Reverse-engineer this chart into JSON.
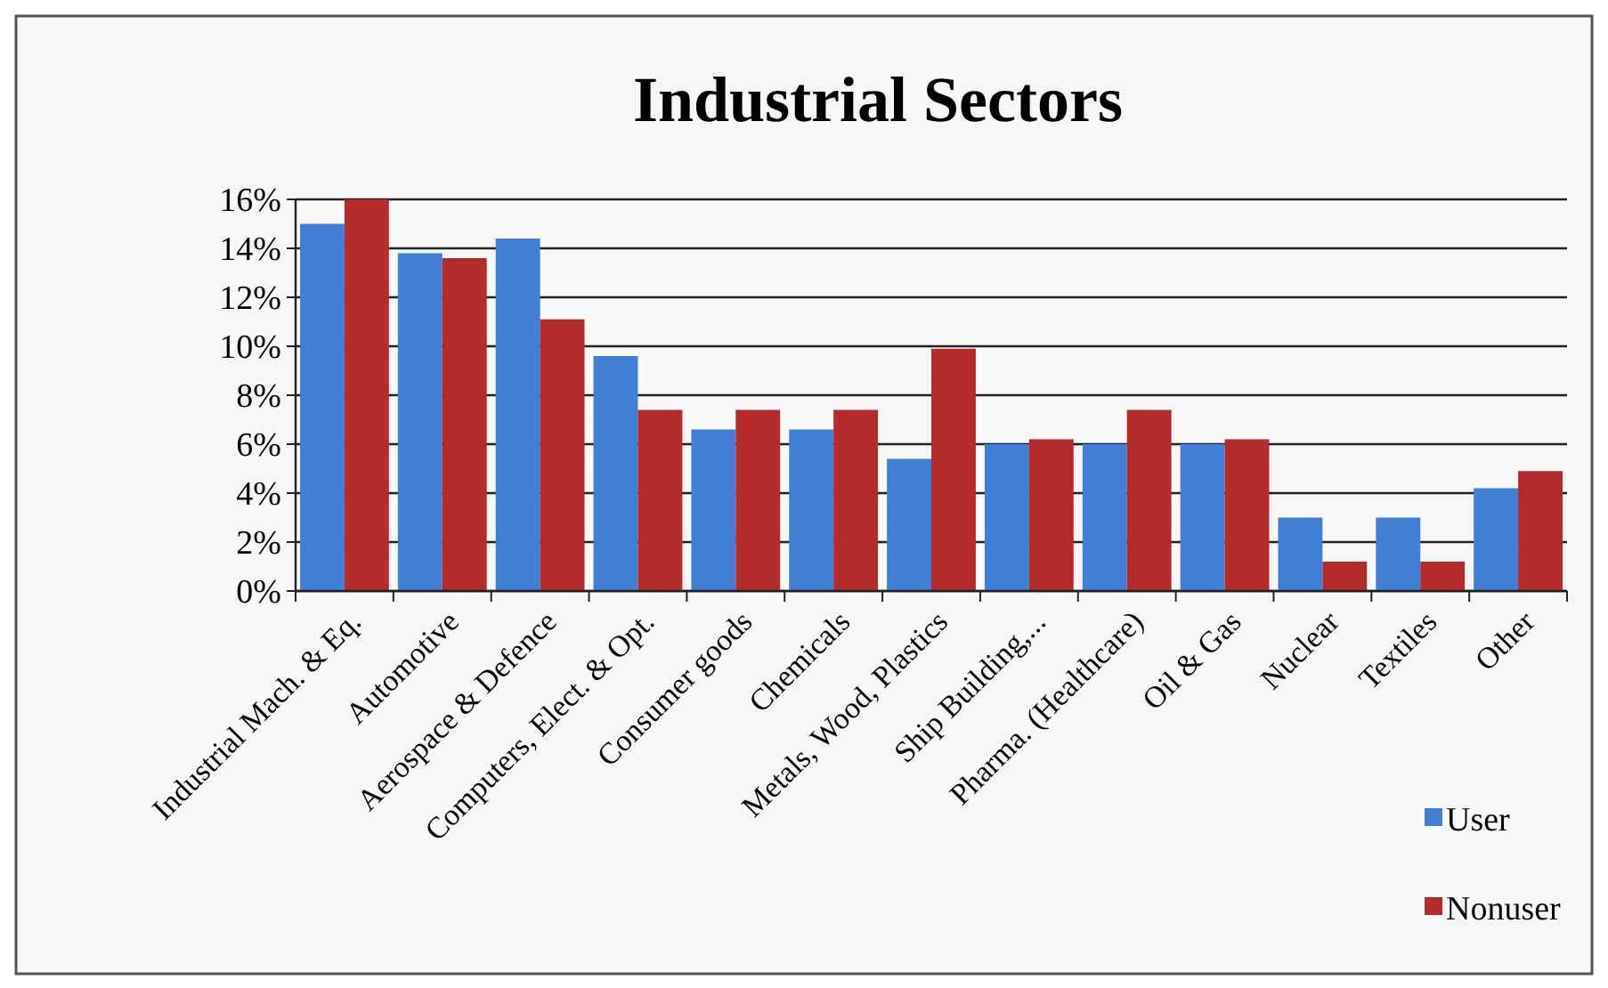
{
  "chart_data": {
    "type": "bar",
    "title": "Industrial Sectors",
    "categories": [
      "Industrial Mach. & Eq.",
      "Automotive",
      "Aerospace & Defence",
      "Computers, Elect. & Opt.",
      "Consumer goods",
      "Chemicals",
      "Metals, Wood, Plastics",
      "Ship Building,...",
      "Pharma. (Healthcare)",
      "Oil & Gas",
      "Nuclear",
      "Textiles",
      "Other"
    ],
    "series": [
      {
        "name": "User",
        "color": "#3f7fd6",
        "values": [
          15.0,
          13.8,
          14.4,
          9.6,
          6.6,
          6.6,
          5.4,
          6.0,
          6.0,
          6.0,
          3.0,
          3.0,
          4.2
        ]
      },
      {
        "name": "Nonuser",
        "color": "#b52a2a",
        "values": [
          16.0,
          13.6,
          11.1,
          7.4,
          7.4,
          7.4,
          9.9,
          6.2,
          7.4,
          6.2,
          1.2,
          1.2,
          4.9
        ]
      }
    ],
    "ylim": [
      0,
      16
    ],
    "yticks": [
      {
        "value": 0,
        "label": "0%"
      },
      {
        "value": 2,
        "label": "2%"
      },
      {
        "value": 4,
        "label": "4%"
      },
      {
        "value": 6,
        "label": "6%"
      },
      {
        "value": 8,
        "label": "8%"
      },
      {
        "value": 10,
        "label": "10%"
      },
      {
        "value": 12,
        "label": "12%"
      },
      {
        "value": 14,
        "label": "14%"
      },
      {
        "value": 16,
        "label": "16%"
      }
    ],
    "grid": "y",
    "legend": "bottom right"
  }
}
